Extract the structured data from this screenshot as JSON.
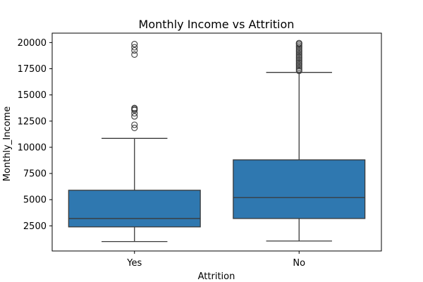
{
  "chart_data": {
    "type": "boxplot",
    "title": "Monthly Income vs Attrition",
    "xlabel": "Attrition",
    "ylabel": "Monthly_Income",
    "categories": [
      "Yes",
      "No"
    ],
    "ylim": [
      100,
      20900
    ],
    "yticks": [
      2500,
      5000,
      7500,
      10000,
      12500,
      15000,
      17500,
      20000
    ],
    "ytick_labels": [
      "2500",
      "5000",
      "7500",
      "10000",
      "12500",
      "15000",
      "17500",
      "20000"
    ],
    "grid": false,
    "boxes": [
      {
        "category": "Yes",
        "whisker_low": 1000,
        "q1": 2400,
        "median": 3200,
        "q3": 5900,
        "whisker_high": 10850,
        "outliers": [
          11850,
          12150,
          12950,
          13250,
          13550,
          13650,
          13750,
          18850,
          19250,
          19550,
          19850
        ]
      },
      {
        "category": "No",
        "whisker_low": 1050,
        "q1": 3200,
        "median": 5200,
        "q3": 8800,
        "whisker_high": 17150,
        "outliers": [
          17300,
          17450,
          17600,
          17750,
          17900,
          18050,
          18200,
          18350,
          18500,
          18650,
          18800,
          18950,
          19100,
          19250,
          19400,
          19550,
          19700,
          19850,
          19950
        ]
      }
    ],
    "colors": {
      "box_fill": "#2f78b0",
      "line": "#3a3a3a",
      "axis": "#000000",
      "background": "#ffffff"
    }
  }
}
